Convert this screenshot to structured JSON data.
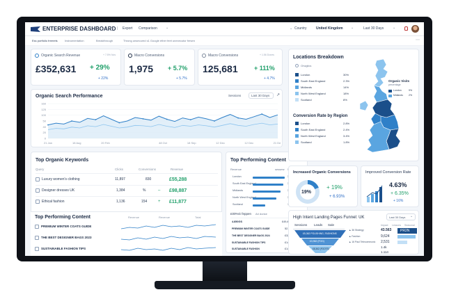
{
  "header": {
    "title": "ENTERPRISE DASHBOARD",
    "export": "Export",
    "comparison": "Comparison",
    "country_label": "Country",
    "country": "United Kingdom",
    "range": "Last 30 Days"
  },
  "subnav": [
    "Ess portfolio freerets",
    "Instrumentation",
    "Breakthrough",
    "Throng unsecured s1 Google ether feet unexecutor fresen"
  ],
  "kpis": [
    {
      "label": "Organic Search Revenue",
      "value": "£352,631",
      "change": "+ 29%",
      "sub": "+ 22%",
      "corner": "+ 7.5% Nov"
    },
    {
      "label": "Macro Conversions",
      "value": "1,975",
      "change": "+ 5.7%",
      "sub": "+ 5.7%"
    },
    {
      "label": "Macro Conversions",
      "value": "125,681",
      "change": "+ 111%",
      "sub": "+ 4.7%",
      "corner": "+ 1.56 Dones"
    }
  ],
  "performance": {
    "title": "Organic Search Performance",
    "metric": "Sessions",
    "range": "Last 30 Days",
    "y_ticks": [
      "160",
      "125",
      "100",
      "50",
      "40",
      "20",
      "0"
    ],
    "x_ticks": [
      "21 Jan",
      "18 Aug",
      "20 Feb",
      "",
      "48 Oct",
      "18 Sep",
      "12 Dec",
      "12 Dec",
      "21 Dec"
    ]
  },
  "chart_data": {
    "type": "line",
    "title": "Organic Search Performance",
    "ylim": [
      0,
      160
    ],
    "x": [
      0,
      1,
      2,
      3,
      4,
      5,
      6,
      7,
      8,
      9,
      10,
      11,
      12,
      13,
      14,
      15,
      16,
      17,
      18,
      19,
      20,
      21,
      22,
      23,
      24,
      25,
      26,
      27,
      28,
      29
    ],
    "series": [
      {
        "name": "Sessions",
        "values": [
          62,
          70,
          66,
          80,
          74,
          92,
          86,
          104,
          88,
          72,
          80,
          96,
          90,
          84,
          102,
          88,
          78,
          94,
          86,
          98,
          90,
          80,
          96,
          110,
          94,
          88,
          100,
          112,
          96,
          108
        ]
      },
      {
        "values": [
          40,
          46,
          44,
          52,
          48,
          58,
          54,
          64,
          56,
          48,
          52,
          60,
          58,
          54,
          64,
          56,
          50,
          60,
          56,
          62,
          58,
          52,
          60,
          68,
          60,
          56,
          64,
          70,
          62,
          66
        ]
      }
    ]
  },
  "keywords": {
    "title": "Top Organic Keywords",
    "columns": [
      "Query",
      "Clicks",
      "Conversions",
      "Revenue"
    ],
    "rows": [
      {
        "query": "Luxury women's clothing",
        "clicks": "11,897",
        "conv": "830",
        "revenue": "£55,288"
      },
      {
        "query": "Designer dresses UK",
        "clicks": "1,384",
        "conv": "%",
        "revenue": "£98,887"
      },
      {
        "query": "Ethical fashion",
        "clicks": "1,136",
        "conv": "154",
        "revenue": "£11,877"
      }
    ]
  },
  "content_left": {
    "title": "Top Performing Content",
    "columns": [
      "Revenue",
      "Revenue",
      "Total"
    ],
    "rows": [
      "PREMIUM WINTER COATS GUIDE",
      "THE BEST DESIGNER BAGS 2023",
      "SUSTAINABLE FASHION TIPS"
    ]
  },
  "content_mid": {
    "title": "Top Performing Content",
    "columns": [
      "Revenue",
      "sessesr",
      "5/4",
      "18%"
    ],
    "rows": [
      {
        "name": "London",
        "value": "3.6%",
        "pct": "52%"
      },
      {
        "name": "South East England",
        "value": "3.7%",
        "pct": "52%"
      },
      {
        "name": "Midlands",
        "value": "3.7%",
        "pct": "41%"
      },
      {
        "name": "North West England",
        "value": "3.1%",
        "pct": "32%"
      },
      {
        "name": "Scotland",
        "value": "1.2%",
        "pct": "12%"
      }
    ],
    "sub_a": "£00%G feppen",
    "sub_b": "Ari dorice",
    "list": [
      {
        "name": "4.850GS",
        "value": "£49,4.30",
        "pct": "3%"
      },
      {
        "name": "PREMIUM WINTER COATS GUIDE",
        "value": "52.34",
        "pct": "4%"
      },
      {
        "name": "THE BEST DESIGNER BAGS 2024",
        "value": "£32.36",
        "pct": "4%"
      },
      {
        "name": "SUSTAINABLE FASHION TIPS",
        "value": "£14.12",
        "pct": "9%"
      },
      {
        "name": "SUSTAINABLE FASHION",
        "value": "£14.32",
        "pct": "5%"
      }
    ]
  },
  "locations": {
    "title": "Locations Breakdown",
    "sub": "Orwglics",
    "rows": [
      {
        "name": "London",
        "pct": "30%"
      },
      {
        "name": "South East England",
        "pct": "2.3%"
      },
      {
        "name": "Midlands",
        "pct": "14%"
      },
      {
        "name": "North West England",
        "pct": "18%"
      },
      {
        "name": "Scotland",
        "pct": "8%"
      }
    ],
    "visits_title": "Organic Visits",
    "visits_sub": "percentage",
    "legend": [
      {
        "label": "London",
        "pct": "9%"
      },
      {
        "label": "Midlands",
        "pct": "2%"
      }
    ]
  },
  "conv_region": {
    "title": "Conversion Rate by Region",
    "rows": [
      {
        "name": "London",
        "pct": "2.8%"
      },
      {
        "name": "South East England",
        "pct": "2.4%"
      },
      {
        "name": "North West England",
        "pct": "3.4%"
      },
      {
        "name": "Scotland",
        "pct": "1.8%"
      }
    ]
  },
  "increased": {
    "title": "Increased Organic Conversions",
    "donut": "19%",
    "donut_fraction": 0.19,
    "change": "+ 19%",
    "sub": "+ 6.93%"
  },
  "improved": {
    "title": "Improved Conversion Rate",
    "value": "4.63%",
    "change": "+ 6.35%",
    "sub": "+ 16%"
  },
  "funnel": {
    "title": "High Intent Landing Pages Funnel: UK",
    "range": "Last 30 Days",
    "tabs": [
      "Sessions",
      "Leads",
      "Sale"
    ],
    "stages": [
      "£5,362 POLISHING, FASHIONS",
      "£3,962 (FOG)",
      "£8,362 (FOOTS)"
    ],
    "columns": [
      "Impact",
      "Lessons",
      "Seasonal"
    ],
    "rows": [
      {
        "label": "▲ 36 Strategy",
        "value": "43.563",
        "tag": "PR2N"
      },
      {
        "label": "▲ Fashion",
        "value": "9,624",
        "tag": ""
      },
      {
        "label": "▲ 16 Paul Telecommunic",
        "value": "2,531",
        "tag": ""
      },
      {
        "label": "",
        "value": "1.4k",
        "tag": ""
      },
      {
        "label": "",
        "value": "1.114",
        "tag": ""
      }
    ]
  },
  "colors": {
    "accent": "#2f80c8",
    "positive": "#22a06b",
    "dark": "#1b2a44"
  }
}
